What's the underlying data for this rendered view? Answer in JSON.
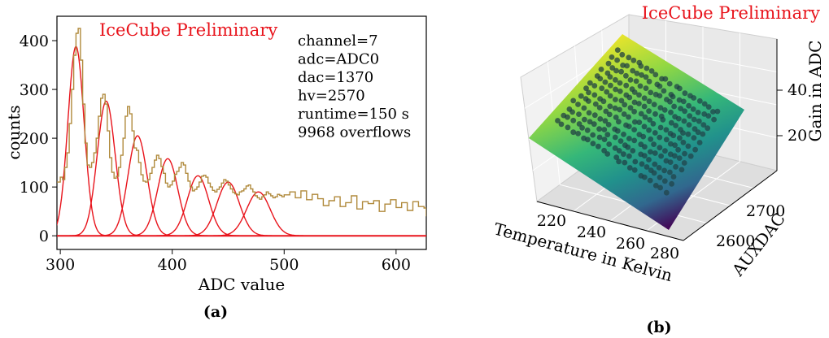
{
  "chart_data": [
    {
      "type": "line",
      "subfigure_label": "(a)",
      "watermark": "IceCube Preliminary",
      "xlabel": "ADC value",
      "ylabel": "counts",
      "xlim": [
        297,
        627
      ],
      "ylim": [
        -28,
        450
      ],
      "xticks": [
        300,
        400,
        500,
        600
      ],
      "yticks": [
        0,
        100,
        200,
        300,
        400
      ],
      "info_lines": [
        "channel=7",
        "adc=ADC0",
        "dac=1370",
        "hv=2570",
        "runtime=150 s",
        "9968 overflows"
      ],
      "colors": {
        "histogram": "#b08a3c",
        "fits": "#e8131b"
      },
      "series": [
        {
          "kind": "histogram",
          "x": [
            297,
            300,
            302,
            304,
            306,
            308,
            310,
            312,
            314,
            316,
            318,
            320,
            322,
            324,
            326,
            328,
            330,
            332,
            334,
            336,
            338,
            340,
            342,
            344,
            346,
            348,
            350,
            352,
            354,
            356,
            358,
            360,
            362,
            364,
            366,
            368,
            370,
            372,
            374,
            376,
            378,
            380,
            382,
            384,
            386,
            388,
            390,
            392,
            394,
            396,
            398,
            400,
            402,
            404,
            406,
            408,
            410,
            412,
            414,
            416,
            418,
            420,
            422,
            424,
            426,
            428,
            430,
            432,
            434,
            436,
            438,
            440,
            442,
            444,
            446,
            448,
            450,
            452,
            454,
            456,
            458,
            460,
            462,
            464,
            466,
            468,
            470,
            472,
            474,
            476,
            478,
            480,
            482,
            484,
            486,
            488,
            490,
            492,
            494,
            496,
            498,
            500,
            505,
            510,
            515,
            520,
            525,
            530,
            535,
            540,
            545,
            550,
            555,
            560,
            565,
            570,
            575,
            580,
            585,
            590,
            595,
            600,
            605,
            610,
            615,
            620,
            625,
            627
          ],
          "y": [
            110,
            120,
            115,
            140,
            170,
            230,
            300,
            370,
            415,
            425,
            360,
            270,
            190,
            145,
            140,
            150,
            170,
            200,
            245,
            282,
            290,
            270,
            215,
            160,
            130,
            118,
            122,
            140,
            165,
            200,
            245,
            265,
            250,
            215,
            180,
            175,
            150,
            125,
            112,
            110,
            115,
            128,
            140,
            155,
            165,
            158,
            142,
            128,
            108,
            100,
            104,
            112,
            126,
            132,
            140,
            150,
            145,
            128,
            112,
            100,
            92,
            95,
            100,
            110,
            122,
            124,
            120,
            108,
            100,
            93,
            90,
            95,
            100,
            108,
            115,
            112,
            104,
            96,
            89,
            86,
            84,
            90,
            92,
            96,
            102,
            104,
            96,
            90,
            82,
            78,
            75,
            80,
            84,
            90,
            86,
            82,
            78,
            80,
            85,
            83,
            80,
            84,
            90,
            78,
            92,
            74,
            85,
            76,
            62,
            72,
            80,
            60,
            68,
            82,
            55,
            70,
            66,
            72,
            50,
            65,
            74,
            58,
            68,
            52,
            70,
            60,
            57,
            40
          ]
        },
        {
          "kind": "gaussian_fit",
          "mu": 314,
          "sigma": 7.2,
          "amplitude": 388
        },
        {
          "kind": "gaussian_fit",
          "mu": 341,
          "sigma": 8.0,
          "amplitude": 276
        },
        {
          "kind": "gaussian_fit",
          "mu": 369,
          "sigma": 8.5,
          "amplitude": 205
        },
        {
          "kind": "gaussian_fit",
          "mu": 396,
          "sigma": 9.0,
          "amplitude": 158
        },
        {
          "kind": "gaussian_fit",
          "mu": 423,
          "sigma": 9.5,
          "amplitude": 123
        },
        {
          "kind": "gaussian_fit",
          "mu": 450,
          "sigma": 10.0,
          "amplitude": 110
        },
        {
          "kind": "gaussian_fit",
          "mu": 477,
          "sigma": 10.5,
          "amplitude": 90
        }
      ]
    },
    {
      "type": "scatter",
      "subfigure_label": "(b)",
      "watermark": "IceCube Preliminary",
      "xlabel": "Temperature in Kelvin",
      "ylabel": "AUXDAC",
      "zlabel": "Gain in ADC",
      "xticks": [
        220,
        240,
        260,
        280
      ],
      "yticks": [
        2600,
        2700
      ],
      "zticks": [
        20,
        40
      ],
      "xlim": [
        205,
        285
      ],
      "ylim": [
        2540,
        2760
      ],
      "zlim": [
        5,
        55
      ],
      "surface": {
        "kind": "fitted_plane",
        "colormap": "viridis"
      },
      "grid": true
    }
  ]
}
